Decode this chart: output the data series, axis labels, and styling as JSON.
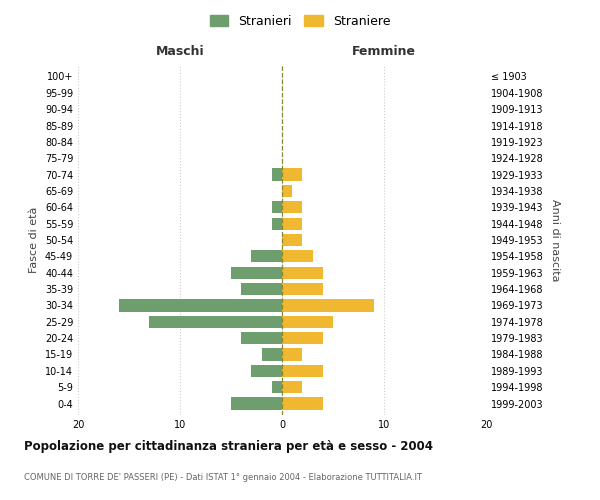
{
  "age_groups": [
    "0-4",
    "5-9",
    "10-14",
    "15-19",
    "20-24",
    "25-29",
    "30-34",
    "35-39",
    "40-44",
    "45-49",
    "50-54",
    "55-59",
    "60-64",
    "65-69",
    "70-74",
    "75-79",
    "80-84",
    "85-89",
    "90-94",
    "95-99",
    "100+"
  ],
  "birth_years": [
    "1999-2003",
    "1994-1998",
    "1989-1993",
    "1984-1988",
    "1979-1983",
    "1974-1978",
    "1969-1973",
    "1964-1968",
    "1959-1963",
    "1954-1958",
    "1949-1953",
    "1944-1948",
    "1939-1943",
    "1934-1938",
    "1929-1933",
    "1924-1928",
    "1919-1923",
    "1914-1918",
    "1909-1913",
    "1904-1908",
    "≤ 1903"
  ],
  "maschi": [
    5,
    1,
    3,
    2,
    4,
    13,
    16,
    4,
    5,
    3,
    0,
    1,
    1,
    0,
    1,
    0,
    0,
    0,
    0,
    0,
    0
  ],
  "femmine": [
    4,
    2,
    4,
    2,
    4,
    5,
    9,
    4,
    4,
    3,
    2,
    2,
    2,
    1,
    2,
    0,
    0,
    0,
    0,
    0,
    0
  ],
  "color_maschi": "#6e9e6e",
  "color_femmine": "#f0b830",
  "title": "Popolazione per cittadinanza straniera per età e sesso - 2004",
  "subtitle": "COMUNE DI TORRE DE' PASSERI (PE) - Dati ISTAT 1° gennaio 2004 - Elaborazione TUTTITALIA.IT",
  "xlabel_left": "Maschi",
  "xlabel_right": "Femmine",
  "ylabel_left": "Fasce di età",
  "ylabel_right": "Anni di nascita",
  "legend_maschi": "Stranieri",
  "legend_femmine": "Straniere",
  "xlim": 20,
  "background_color": "#ffffff",
  "grid_color": "#cccccc"
}
